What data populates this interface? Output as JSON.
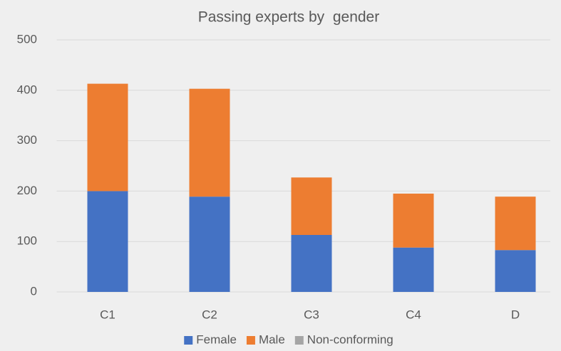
{
  "chart_data": {
    "type": "stacked_bar",
    "title": "Passing experts by  gender",
    "categories": [
      "C1",
      "C2",
      "C3",
      "C4",
      "D"
    ],
    "series": [
      {
        "name": "Female",
        "color": "#4472c4",
        "values": [
          200,
          189,
          113,
          88,
          83
        ]
      },
      {
        "name": "Male",
        "color": "#ed7d31",
        "values": [
          213,
          214,
          114,
          107,
          106
        ]
      },
      {
        "name": "Non-conforming",
        "color": "#a5a5a5",
        "values": [
          0,
          0,
          0,
          0,
          0
        ]
      }
    ],
    "ylim": [
      0,
      500
    ],
    "yticks": [
      0,
      100,
      200,
      300,
      400,
      500
    ],
    "grid": true,
    "legend": "bottom"
  }
}
